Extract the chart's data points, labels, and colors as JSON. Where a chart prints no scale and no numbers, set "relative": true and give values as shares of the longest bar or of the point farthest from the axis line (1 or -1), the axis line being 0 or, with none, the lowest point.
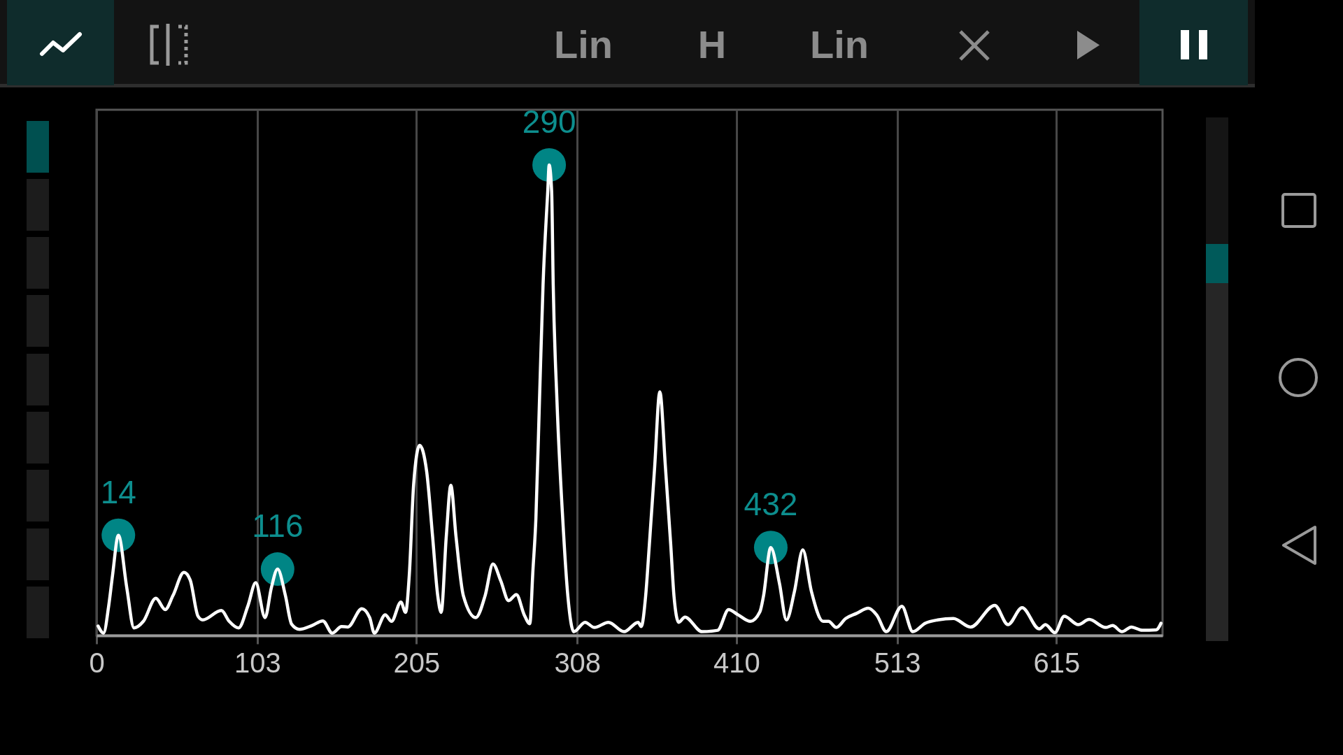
{
  "chart_data": {
    "type": "line",
    "relative": true,
    "color": "#ffffff",
    "x": [
      1,
      4.5,
      7.8,
      10.3,
      14,
      19.4,
      24,
      30,
      38,
      44,
      49,
      56,
      60,
      65,
      68,
      80,
      85,
      91,
      97,
      102,
      108,
      112,
      116,
      121,
      125,
      130,
      138,
      145,
      151,
      157,
      161,
      170,
      175,
      178,
      185,
      189,
      195,
      198,
      200.4,
      203.2,
      207,
      211.5,
      215.3,
      218.6,
      220.8,
      224.1,
      227,
      230.3,
      235,
      243,
      249,
      254,
      259,
      264,
      269,
      274,
      277.6,
      279.6,
      281.5,
      283.8,
      286.1,
      289.1,
      290,
      291.6,
      292.6,
      295,
      298.7,
      302,
      305.8,
      313,
      319,
      328,
      338,
      347,
      349,
      351.8,
      354.2,
      357.6,
      360.9,
      364.5,
      367.9,
      370,
      373,
      377,
      388,
      398,
      405,
      411,
      419,
      425,
      427.3,
      432,
      437.6,
      442,
      447.2,
      452.5,
      458,
      465.5,
      469,
      474,
      480,
      487,
      494.5,
      500,
      506,
      516,
      523,
      531,
      539,
      549,
      560,
      575.5,
      584,
      593,
      604,
      608,
      614,
      620,
      629,
      636,
      646.5,
      651,
      657,
      663,
      670,
      679,
      682
    ],
    "values": [
      0.02,
      0.005,
      0.063,
      0.129,
      0.213,
      0.101,
      0.016,
      0.03,
      0.079,
      0.055,
      0.085,
      0.134,
      0.118,
      0.041,
      0.033,
      0.053,
      0.03,
      0.016,
      0.063,
      0.112,
      0.038,
      0.101,
      0.141,
      0.085,
      0.024,
      0.013,
      0.021,
      0.031,
      0.005,
      0.019,
      0.018,
      0.057,
      0.038,
      0.005,
      0.044,
      0.03,
      0.071,
      0.049,
      0.129,
      0.322,
      0.404,
      0.349,
      0.211,
      0.085,
      0.049,
      0.211,
      0.319,
      0.211,
      0.085,
      0.038,
      0.085,
      0.152,
      0.116,
      0.074,
      0.087,
      0.044,
      0.025,
      0.138,
      0.248,
      0.499,
      0.746,
      0.944,
      1,
      0.944,
      0.746,
      0.499,
      0.248,
      0.083,
      0.008,
      0.028,
      0.017,
      0.028,
      0.008,
      0.028,
      0.019,
      0.083,
      0.193,
      0.358,
      0.518,
      0.358,
      0.193,
      0.083,
      0.028,
      0.039,
      0.008,
      0.011,
      0.055,
      0.044,
      0.03,
      0.05,
      0.083,
      0.187,
      0.11,
      0.033,
      0.094,
      0.182,
      0.094,
      0.03,
      0.03,
      0.017,
      0.036,
      0.047,
      0.058,
      0.043,
      0.008,
      0.062,
      0.008,
      0.026,
      0.033,
      0.036,
      0.018,
      0.064,
      0.023,
      0.059,
      0.014,
      0.023,
      0.006,
      0.041,
      0.023,
      0.034,
      0.017,
      0.021,
      0.008,
      0.018,
      0.011,
      0.012,
      0.026
    ],
    "xlim": [
      0,
      683
    ],
    "xticks": [
      0,
      103,
      205,
      308,
      410,
      513,
      615
    ],
    "grid": "x",
    "annotations": [
      {
        "text": "14",
        "x": 14,
        "y": 0.213
      },
      {
        "text": "116",
        "x": 116,
        "y": 0.141
      },
      {
        "text": "290",
        "x": 290,
        "y": 1
      },
      {
        "text": "432",
        "x": 432,
        "y": 0.187
      },
      "Lin",
      "H",
      "Lin"
    ]
  }
}
